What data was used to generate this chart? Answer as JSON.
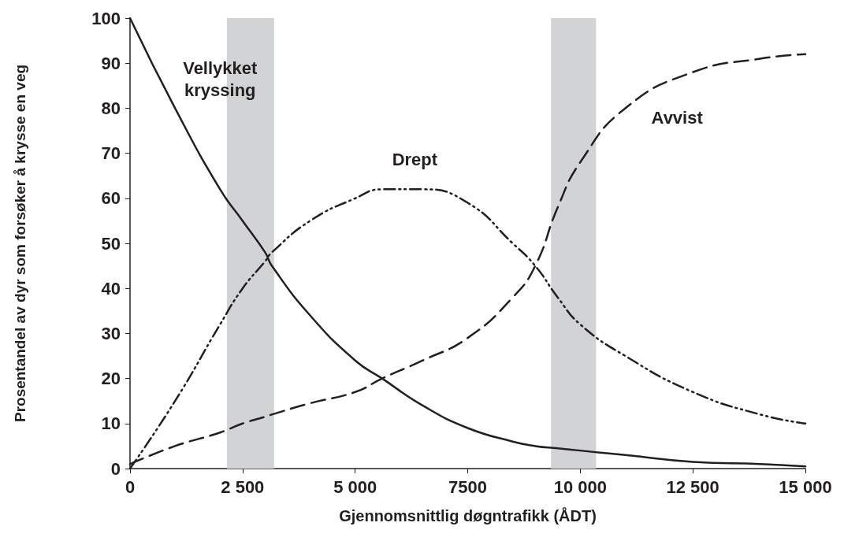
{
  "chart_data": {
    "type": "line",
    "xlabel": "Gjennomsnittlig døgntrafikk (ÅDT)",
    "ylabel": "Prosentandel av dyr som forsøker å krysse en veg",
    "x": [
      0,
      1000,
      2000,
      2500,
      3000,
      3150,
      4000,
      5000,
      5600,
      6500,
      7500,
      8500,
      9000,
      9500,
      10000,
      11000,
      12500,
      14000,
      15000
    ],
    "series": [
      {
        "name": "Vellykket\nkryssing",
        "color": "#231f20",
        "line_style": "solid",
        "values": [
          100,
          80,
          62,
          55,
          48,
          45,
          34,
          24,
          20,
          14,
          9,
          6,
          5,
          4.5,
          4,
          3,
          1.5,
          1,
          0.5
        ]
      },
      {
        "name": "Drept",
        "color": "#231f20",
        "line_style": "dotted",
        "values": [
          0,
          15,
          32,
          40,
          46,
          48,
          55,
          60,
          62,
          62,
          59,
          50,
          45,
          38,
          32,
          25,
          17,
          12,
          10
        ]
      },
      {
        "name": "Avvist",
        "color": "#231f20",
        "line_style": "dashed",
        "values": [
          1,
          5,
          8,
          10,
          11.5,
          12,
          14.5,
          17,
          20,
          24,
          29,
          38,
          45,
          58,
          68,
          80,
          88,
          91,
          92
        ]
      }
    ],
    "xlim": [
      0,
      15000
    ],
    "ylim": [
      0,
      100
    ],
    "xticks": [
      0,
      {
        "value": 2500,
        "label": "2 500"
      },
      {
        "value": 5000,
        "label": "5 000"
      },
      7500,
      {
        "value": 10000,
        "label": "10 000"
      },
      {
        "value": 12500,
        "label": "12 500"
      },
      {
        "value": 15000,
        "label": "15 000"
      }
    ],
    "yticks": [
      0,
      10,
      20,
      30,
      40,
      50,
      60,
      70,
      80,
      90,
      100
    ],
    "bands": [
      {
        "axis": "x",
        "from": 2150,
        "to": 3200,
        "color": "#d1d3d4"
      },
      {
        "axis": "x",
        "from": 9350,
        "to": 10350,
        "color": "#d1d3d4"
      }
    ],
    "grid": false,
    "legend": false,
    "marker": "none"
  }
}
